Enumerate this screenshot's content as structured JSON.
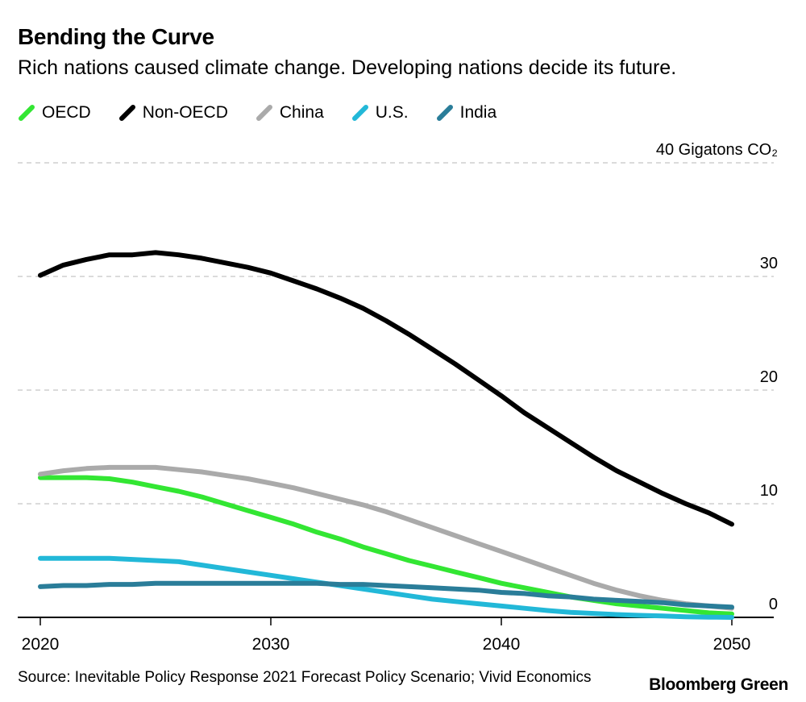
{
  "header": {
    "title": "Bending the Curve",
    "subtitle": "Rich nations caused climate change. Developing nations decide its future."
  },
  "footer": {
    "source": "Source: Inevitable Policy Response 2021 Forecast Policy Scenario; Vivid Economics",
    "brand": "Bloomberg Green"
  },
  "chart_data": {
    "type": "line",
    "title": "Bending the Curve",
    "subtitle": "Rich nations caused climate change. Developing nations decide its future.",
    "xlabel": "",
    "ylabel": "Gigatons CO₂",
    "x": [
      2020,
      2021,
      2022,
      2023,
      2024,
      2025,
      2026,
      2027,
      2028,
      2029,
      2030,
      2031,
      2032,
      2033,
      2034,
      2035,
      2036,
      2037,
      2038,
      2039,
      2040,
      2041,
      2042,
      2043,
      2044,
      2045,
      2046,
      2047,
      2048,
      2049,
      2050
    ],
    "xlim": [
      2020,
      2050
    ],
    "ylim": [
      0,
      40
    ],
    "x_ticks": [
      "2020",
      "2030",
      "2040",
      "2050"
    ],
    "y_ticks": [
      {
        "value": 0,
        "label": "0"
      },
      {
        "value": 10,
        "label": "10"
      },
      {
        "value": 20,
        "label": "20"
      },
      {
        "value": 30,
        "label": "30"
      },
      {
        "value": 40,
        "label": "40 Gigatons CO₂"
      }
    ],
    "grid": true,
    "legend_position": "top-left",
    "series": [
      {
        "name": "OECD",
        "color": "#33e633",
        "values": [
          12.3,
          12.3,
          12.3,
          12.2,
          11.9,
          11.5,
          11.1,
          10.6,
          10.0,
          9.4,
          8.8,
          8.2,
          7.5,
          6.9,
          6.2,
          5.6,
          5.0,
          4.5,
          4.0,
          3.5,
          3.0,
          2.6,
          2.2,
          1.8,
          1.5,
          1.2,
          1.0,
          0.8,
          0.6,
          0.4,
          0.3
        ]
      },
      {
        "name": "Non-OECD",
        "color": "#000000",
        "values": [
          30.1,
          31.0,
          31.5,
          31.9,
          31.9,
          32.1,
          31.9,
          31.6,
          31.2,
          30.8,
          30.3,
          29.6,
          28.9,
          28.1,
          27.2,
          26.1,
          24.9,
          23.6,
          22.3,
          20.9,
          19.5,
          18.0,
          16.7,
          15.4,
          14.1,
          12.9,
          11.9,
          10.9,
          10.0,
          9.2,
          8.2
        ]
      },
      {
        "name": "China",
        "color": "#aaaaaa",
        "values": [
          12.6,
          12.9,
          13.1,
          13.2,
          13.2,
          13.2,
          13.0,
          12.8,
          12.5,
          12.2,
          11.8,
          11.4,
          10.9,
          10.4,
          9.9,
          9.3,
          8.6,
          7.9,
          7.2,
          6.5,
          5.8,
          5.1,
          4.4,
          3.7,
          3.0,
          2.4,
          1.9,
          1.5,
          1.2,
          1.0,
          0.8
        ]
      },
      {
        "name": "U.S.",
        "color": "#22b8d8",
        "values": [
          5.2,
          5.2,
          5.2,
          5.2,
          5.1,
          5.0,
          4.9,
          4.6,
          4.3,
          4.0,
          3.7,
          3.4,
          3.1,
          2.8,
          2.5,
          2.2,
          1.9,
          1.6,
          1.4,
          1.2,
          1.0,
          0.8,
          0.6,
          0.45,
          0.35,
          0.25,
          0.18,
          0.12,
          0.06,
          0.02,
          0.0
        ]
      },
      {
        "name": "India",
        "color": "#2a7d99",
        "values": [
          2.7,
          2.8,
          2.8,
          2.9,
          2.9,
          3.0,
          3.0,
          3.0,
          3.0,
          3.0,
          3.0,
          3.0,
          3.0,
          2.9,
          2.9,
          2.8,
          2.7,
          2.6,
          2.5,
          2.4,
          2.2,
          2.1,
          1.9,
          1.8,
          1.6,
          1.5,
          1.4,
          1.3,
          1.1,
          1.0,
          0.9
        ]
      }
    ]
  }
}
